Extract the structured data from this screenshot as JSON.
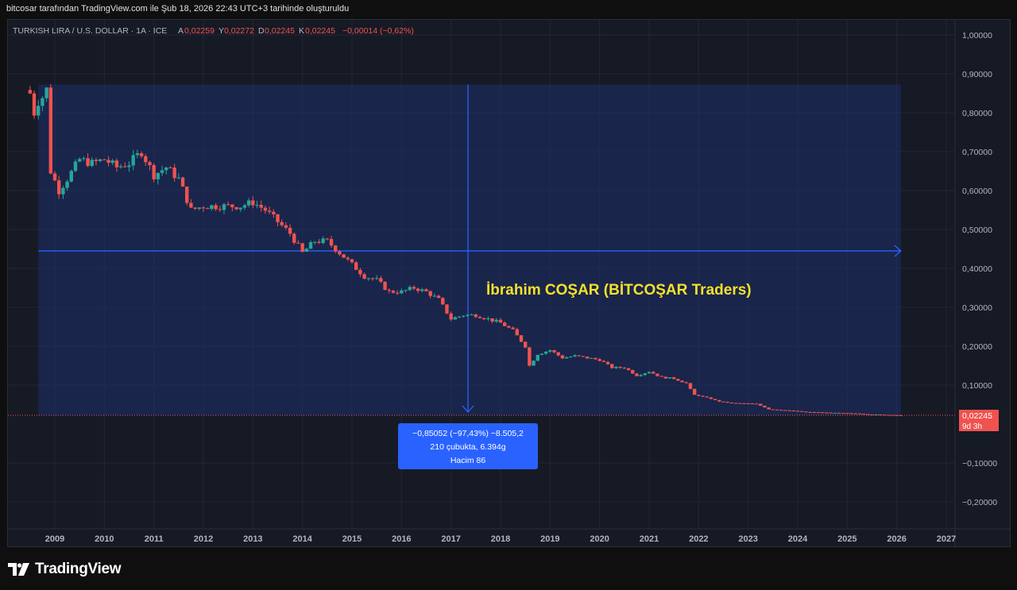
{
  "header": {
    "caption": "bitcosar tarafından TradingView.com ile Şub 18, 2026 22:43 UTC+3 tarihinde oluşturuldu"
  },
  "legend": {
    "symbol": "TURKISH LIRA / U.S. DOLLAR · 1A · ICE",
    "o_label": "A",
    "o_value": "0,02259",
    "h_label": "Y",
    "h_value": "0,02272",
    "l_label": "D",
    "l_value": "0,02245",
    "c_label": "K",
    "c_value": "0,02245",
    "change": "−0,00014 (−0,62%)"
  },
  "annotation": {
    "text": "İbrahim COŞAR (BİTCOŞAR Traders)"
  },
  "measure": {
    "line1": "−0,85052 (−97,43%) −8.505,2",
    "line2": "210 çubukta, 6.394g",
    "line3": "Hacim 86"
  },
  "price_label": {
    "value": "0,02245",
    "countdown": "9d 3h"
  },
  "brand": {
    "name": "TradingView"
  },
  "colors": {
    "up": "#26a69a",
    "down": "#ef5350",
    "measure_fill": "#1e2f6b",
    "measure_line": "#2962ff",
    "annotation": "#f5e12a",
    "bg": "#161a25"
  },
  "chart_data": {
    "type": "candlestick",
    "interval": "1M",
    "y_ticks": [
      "1,00000",
      "0,90000",
      "0,80000",
      "0,70000",
      "0,60000",
      "0,50000",
      "0,40000",
      "0,30000",
      "0,20000",
      "0,10000",
      "−0,10000",
      "−0,20000"
    ],
    "x_ticks": [
      "2009",
      "2010",
      "2011",
      "2012",
      "2013",
      "2014",
      "2015",
      "2016",
      "2017",
      "2018",
      "2019",
      "2020",
      "2021",
      "2022",
      "2023",
      "2024",
      "2025",
      "2026",
      "2027"
    ],
    "ylim": [
      -0.25,
      1.05
    ],
    "last_price": 0.02245,
    "close_points": [
      [
        "2008-07",
        0.85
      ],
      [
        "2008-08",
        0.8
      ],
      [
        "2008-09",
        0.83
      ],
      [
        "2008-10",
        0.84
      ],
      [
        "2008-11",
        0.86
      ],
      [
        "2008-12",
        0.65
      ],
      [
        "2009-02",
        0.6
      ],
      [
        "2009-04",
        0.63
      ],
      [
        "2009-07",
        0.68
      ],
      [
        "2009-10",
        0.67
      ],
      [
        "2010-01",
        0.68
      ],
      [
        "2010-04",
        0.66
      ],
      [
        "2010-07",
        0.67
      ],
      [
        "2010-10",
        0.7
      ],
      [
        "2011-01",
        0.64
      ],
      [
        "2011-04",
        0.66
      ],
      [
        "2011-07",
        0.63
      ],
      [
        "2011-10",
        0.55
      ],
      [
        "2012-01",
        0.56
      ],
      [
        "2012-04",
        0.56
      ],
      [
        "2012-07",
        0.56
      ],
      [
        "2012-10",
        0.56
      ],
      [
        "2013-01",
        0.57
      ],
      [
        "2013-04",
        0.55
      ],
      [
        "2013-07",
        0.52
      ],
      [
        "2013-10",
        0.49
      ],
      [
        "2014-01",
        0.44
      ],
      [
        "2014-04",
        0.47
      ],
      [
        "2014-07",
        0.47
      ],
      [
        "2014-10",
        0.44
      ],
      [
        "2015-01",
        0.41
      ],
      [
        "2015-04",
        0.38
      ],
      [
        "2015-07",
        0.37
      ],
      [
        "2015-10",
        0.34
      ],
      [
        "2016-01",
        0.34
      ],
      [
        "2016-04",
        0.35
      ],
      [
        "2016-07",
        0.34
      ],
      [
        "2016-10",
        0.32
      ],
      [
        "2017-01",
        0.27
      ],
      [
        "2017-04",
        0.28
      ],
      [
        "2017-07",
        0.28
      ],
      [
        "2017-10",
        0.27
      ],
      [
        "2018-01",
        0.26
      ],
      [
        "2018-04",
        0.24
      ],
      [
        "2018-07",
        0.2
      ],
      [
        "2018-08",
        0.15
      ],
      [
        "2018-10",
        0.18
      ],
      [
        "2019-01",
        0.19
      ],
      [
        "2019-04",
        0.17
      ],
      [
        "2019-07",
        0.175
      ],
      [
        "2019-10",
        0.17
      ],
      [
        "2020-01",
        0.165
      ],
      [
        "2020-04",
        0.145
      ],
      [
        "2020-07",
        0.145
      ],
      [
        "2020-10",
        0.125
      ],
      [
        "2021-01",
        0.135
      ],
      [
        "2021-04",
        0.12
      ],
      [
        "2021-07",
        0.117
      ],
      [
        "2021-10",
        0.105
      ],
      [
        "2021-12",
        0.075
      ],
      [
        "2022-03",
        0.068
      ],
      [
        "2022-06",
        0.058
      ],
      [
        "2022-09",
        0.054
      ],
      [
        "2022-12",
        0.053
      ],
      [
        "2023-03",
        0.052
      ],
      [
        "2023-06",
        0.038
      ],
      [
        "2023-09",
        0.036
      ],
      [
        "2023-12",
        0.034
      ],
      [
        "2024-03",
        0.031
      ],
      [
        "2024-06",
        0.03
      ],
      [
        "2024-09",
        0.029
      ],
      [
        "2024-12",
        0.028
      ],
      [
        "2025-03",
        0.027
      ],
      [
        "2025-06",
        0.025
      ],
      [
        "2025-09",
        0.024
      ],
      [
        "2025-12",
        0.023
      ],
      [
        "2026-02",
        0.02245
      ]
    ]
  }
}
